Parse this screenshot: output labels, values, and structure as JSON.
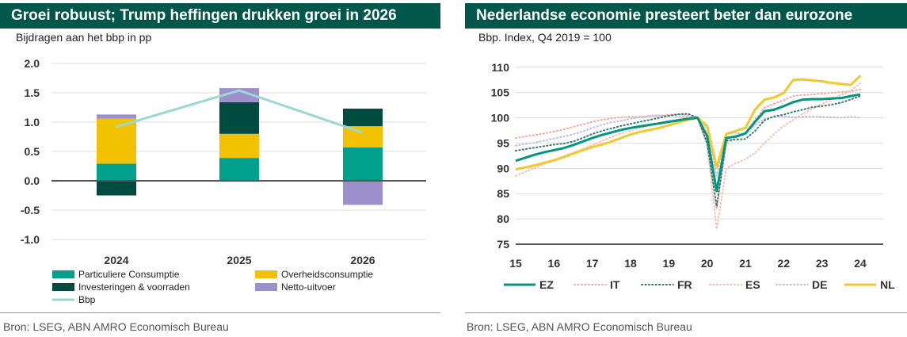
{
  "left": {
    "title": "Groei robuust; Trump heffingen drukken groei in 2026",
    "subtitle": "Bijdragen aan het bbp in pp",
    "source": "Bron: LSEG, ABN AMRO Economisch Bureau"
  },
  "right": {
    "title": "Nederlandse economie presteert beter dan eurozone",
    "subtitle": "Bbp. Index, Q4 2019 = 100",
    "source": "Bron: LSEG, ABN AMRO Economisch Bureau"
  },
  "chart_data": [
    {
      "type": "bar",
      "stacked": true,
      "categories": [
        "2024",
        "2025",
        "2026"
      ],
      "ylim": [
        -1.0,
        2.0
      ],
      "yticks": [
        -1.0,
        -0.5,
        0.0,
        0.5,
        1.0,
        1.5,
        2.0
      ],
      "ytick_labels": [
        "-1.0",
        "-0.5",
        "0.0",
        "0.5",
        "1.0",
        "1.5",
        "2.0"
      ],
      "grid": "horizontal",
      "legend_position": "bottom",
      "series": [
        {
          "name": "Particuliere Consumptie",
          "color": "#00a08c",
          "values": [
            0.29,
            0.39,
            0.57
          ]
        },
        {
          "name": "Overheidsconsumptie",
          "color": "#f2c100",
          "values": [
            0.77,
            0.41,
            0.36
          ]
        },
        {
          "name": "Investeringen & voorraden",
          "color": "#004b3f",
          "values": [
            -0.25,
            0.54,
            0.3
          ]
        },
        {
          "name": "Netto-uitvoer",
          "color": "#9b8fcc",
          "values": [
            0.07,
            0.24,
            -0.41
          ]
        }
      ],
      "line": {
        "name": "Bbp",
        "color": "#9ad8d1",
        "values": [
          0.92,
          1.54,
          0.82
        ]
      }
    },
    {
      "type": "line",
      "x_start": 2015.0,
      "x_step": 0.25,
      "xlim": [
        2015,
        2024.6
      ],
      "xticks": [
        2015,
        2016,
        2017,
        2018,
        2019,
        2020,
        2021,
        2022,
        2023,
        2024
      ],
      "xtick_labels": [
        "15",
        "16",
        "17",
        "18",
        "19",
        "20",
        "21",
        "22",
        "23",
        "24"
      ],
      "ylim": [
        75,
        112
      ],
      "yticks": [
        75,
        80,
        85,
        90,
        95,
        100,
        105,
        110
      ],
      "ytick_labels": [
        "75",
        "80",
        "85",
        "90",
        "95",
        "100",
        "105",
        "110"
      ],
      "grid": "horizontal",
      "legend_position": "bottom",
      "series": [
        {
          "name": "EZ",
          "color": "#00957e",
          "style": "solid",
          "width": 3,
          "values": [
            91.5,
            92.1,
            92.7,
            93.2,
            93.6,
            94.0,
            94.6,
            95.3,
            96.0,
            96.6,
            97.1,
            97.6,
            98.0,
            98.3,
            98.6,
            98.9,
            99.2,
            99.5,
            99.8,
            100.0,
            96.4,
            85.5,
            96.0,
            96.3,
            96.9,
            99.2,
            101.3,
            101.6,
            102.3,
            103.1,
            103.6,
            103.7,
            103.7,
            103.8,
            103.9,
            104.3,
            104.6
          ]
        },
        {
          "name": "IT",
          "color": "#f2a8a0",
          "style": "dotted",
          "width": 2,
          "values": [
            96.0,
            96.3,
            96.6,
            96.9,
            97.3,
            97.7,
            98.2,
            98.7,
            99.2,
            99.6,
            99.9,
            100.1,
            100.2,
            100.2,
            100.3,
            100.4,
            100.6,
            100.7,
            100.5,
            100.0,
            95.0,
            82.0,
            95.0,
            96.0,
            97.0,
            99.5,
            102.0,
            102.8,
            103.5,
            104.3,
            104.5,
            104.6,
            104.8,
            104.9,
            105.1,
            105.2,
            105.6
          ]
        },
        {
          "name": "FR",
          "color": "#2f7c6e",
          "style": "dotted",
          "width": 2,
          "values": [
            93.5,
            93.8,
            94.1,
            94.4,
            94.7,
            94.9,
            95.3,
            96.0,
            96.8,
            97.4,
            97.9,
            98.4,
            98.8,
            99.2,
            99.6,
            100.0,
            100.4,
            100.7,
            100.8,
            100.0,
            95.0,
            82.5,
            95.5,
            95.7,
            95.8,
            97.4,
            99.5,
            100.3,
            100.6,
            101.2,
            101.6,
            102.1,
            102.3,
            102.6,
            103.0,
            103.6,
            104.3
          ]
        },
        {
          "name": "ES",
          "color": "#f5bfb3",
          "style": "dotted",
          "width": 2,
          "values": [
            88.5,
            89.3,
            90.1,
            90.9,
            91.7,
            92.4,
            93.1,
            93.8,
            94.6,
            95.4,
            96.2,
            96.9,
            97.5,
            98.0,
            98.5,
            99.0,
            99.4,
            99.7,
            100.2,
            100.0,
            94.6,
            78.0,
            90.0,
            91.0,
            91.8,
            93.0,
            95.0,
            96.8,
            98.4,
            99.6,
            100.8,
            101.8,
            102.7,
            103.6,
            104.5,
            105.4,
            106.8
          ]
        },
        {
          "name": "DE",
          "color": "#c1bde0",
          "style": "dotted",
          "width": 2,
          "values": [
            94.5,
            94.8,
            95.1,
            95.5,
            95.9,
            96.3,
            96.7,
            97.3,
            98.0,
            98.6,
            99.1,
            99.4,
            99.8,
            100.1,
            100.4,
            100.5,
            100.4,
            100.3,
            100.2,
            100.0,
            97.8,
            88.5,
            96.8,
            97.0,
            96.8,
            98.6,
            99.8,
            100.1,
            100.3,
            100.1,
            100.2,
            100.3,
            100.2,
            100.1,
            100.0,
            100.2,
            100.0
          ]
        },
        {
          "name": "NL",
          "color": "#f4c82d",
          "style": "solid",
          "width": 3,
          "values": [
            89.8,
            90.2,
            90.6,
            91.1,
            91.6,
            92.2,
            92.9,
            93.6,
            94.2,
            94.7,
            95.3,
            96.0,
            96.7,
            97.2,
            97.6,
            98.0,
            98.5,
            99.1,
            99.6,
            100.0,
            98.4,
            90.2,
            96.8,
            97.4,
            98.0,
            101.6,
            103.6,
            104.0,
            104.9,
            107.5,
            107.6,
            107.4,
            107.2,
            106.9,
            106.7,
            106.5,
            108.3
          ]
        }
      ]
    }
  ]
}
